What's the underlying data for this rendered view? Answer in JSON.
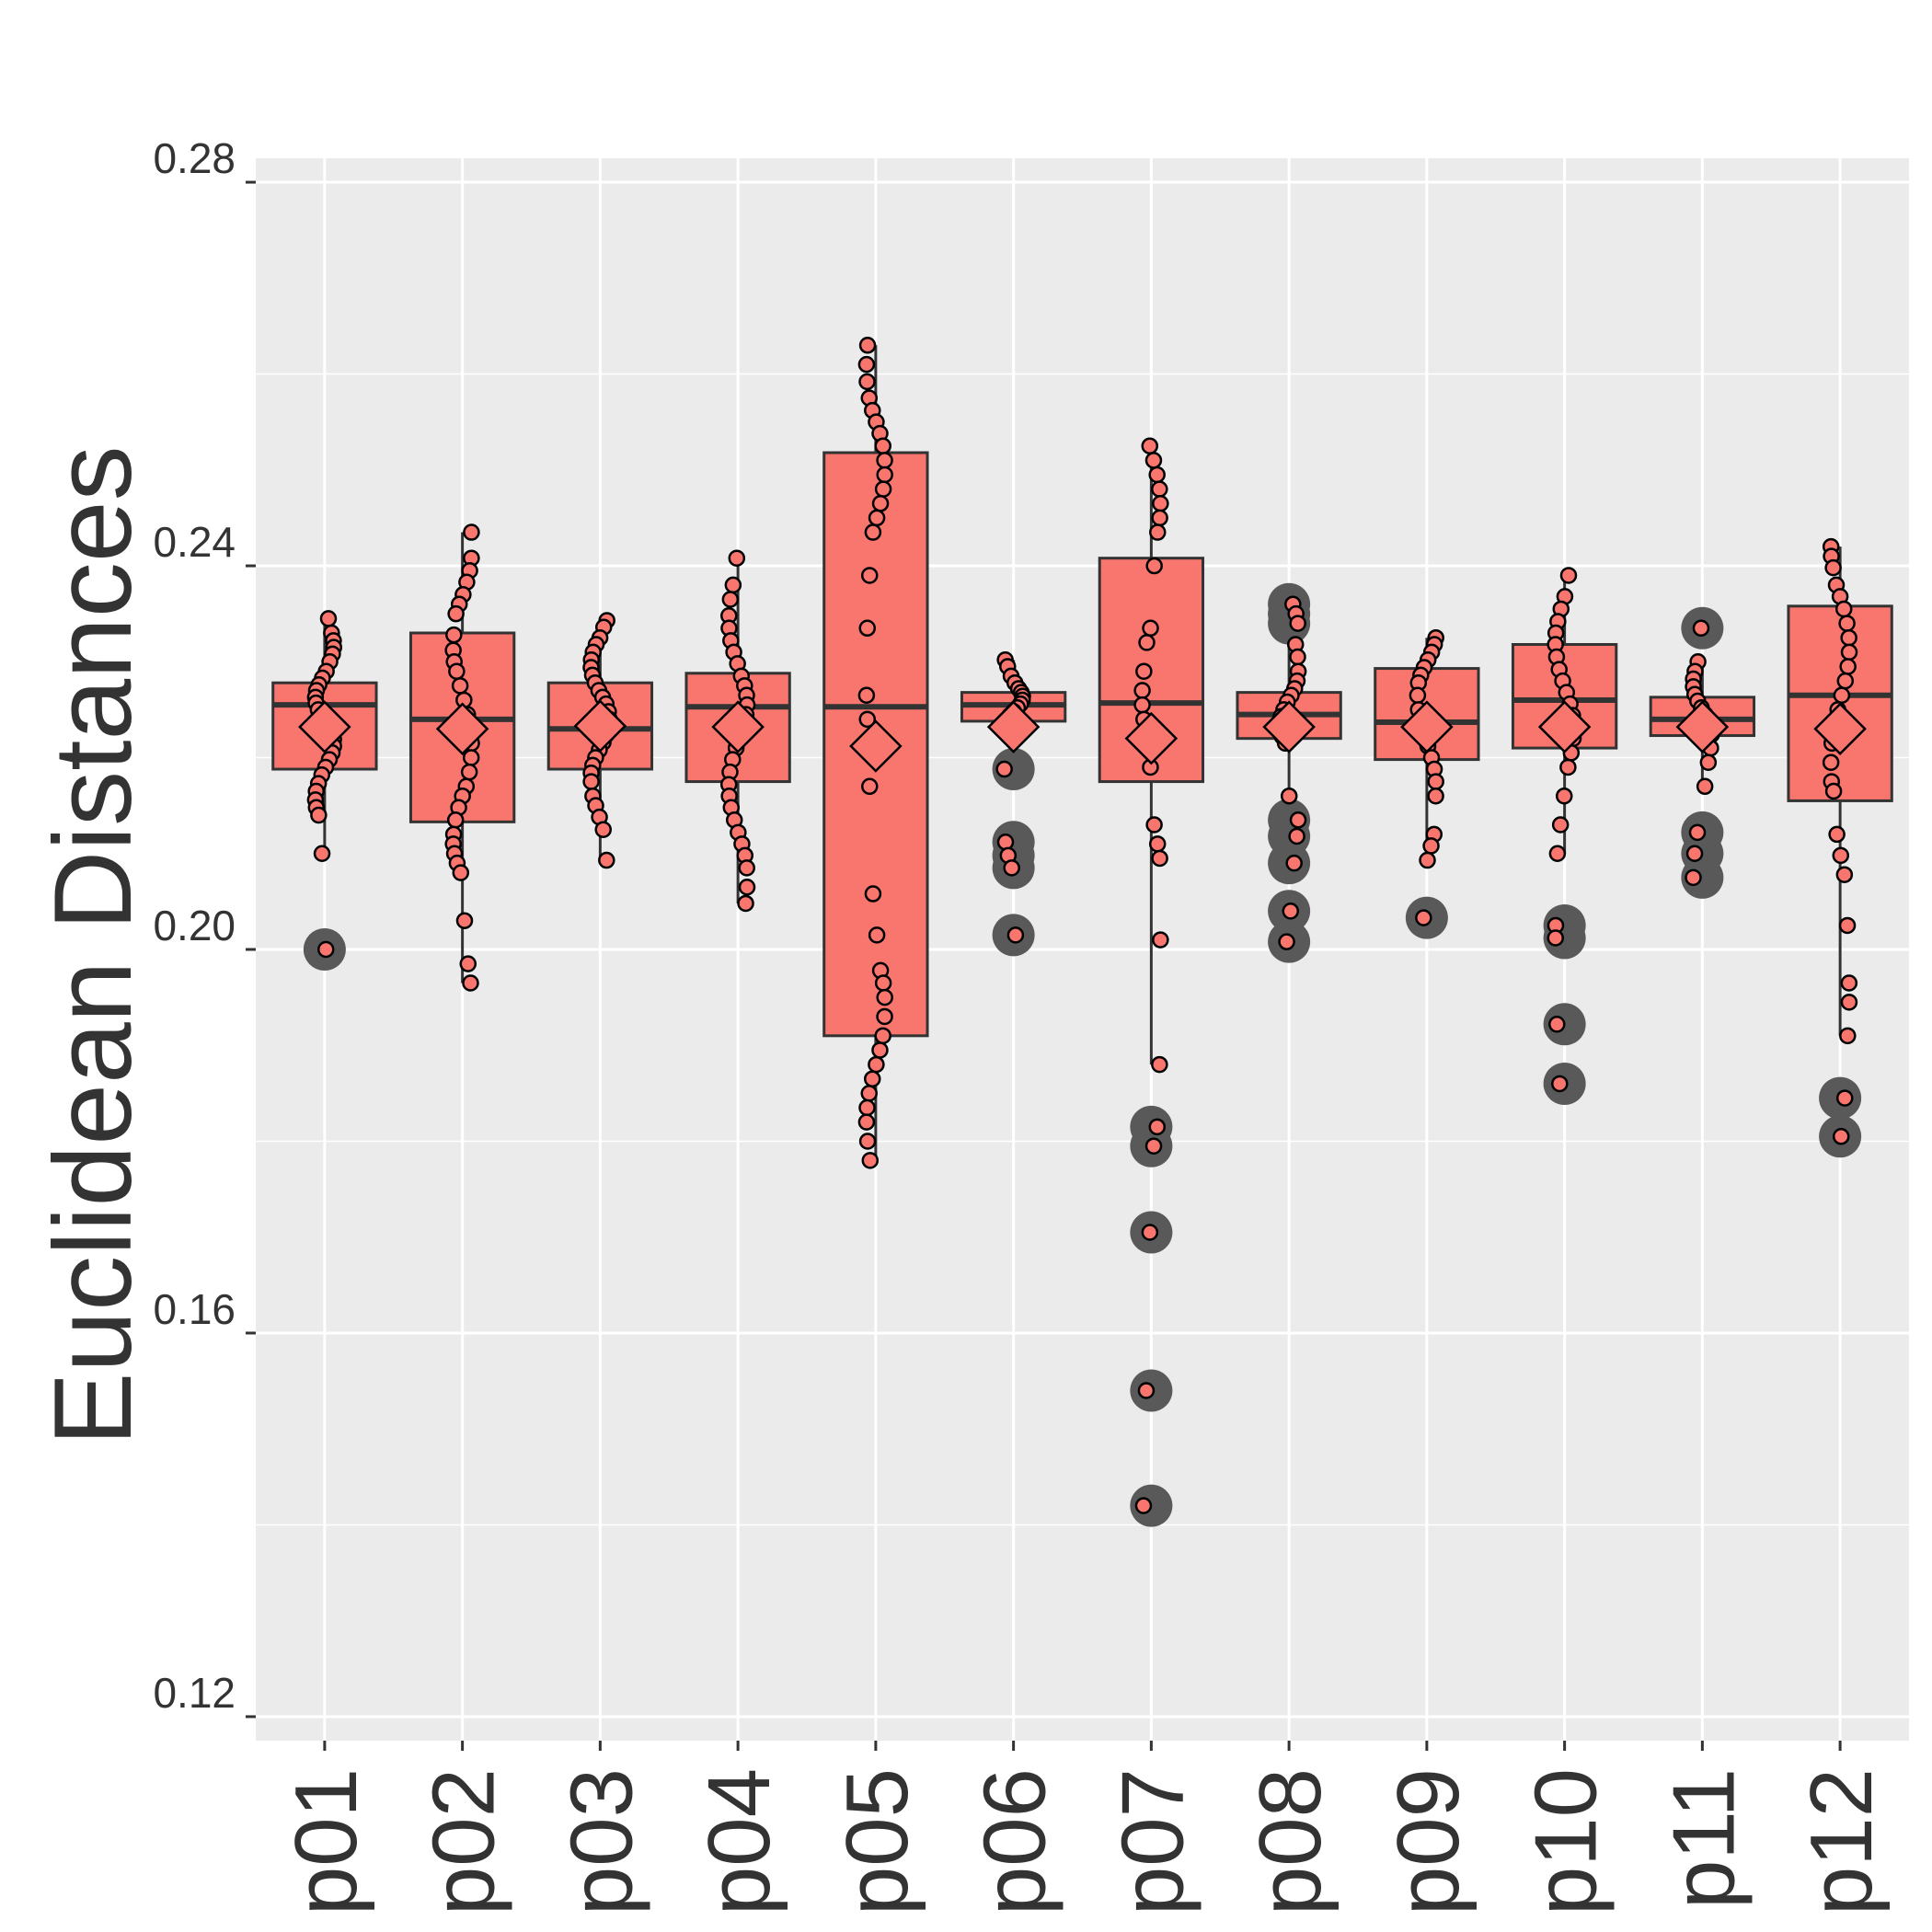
{
  "chart_data": {
    "type": "boxplot",
    "title": "",
    "xlabel": "",
    "ylabel": "Euclidean Distances",
    "ylim": [
      0.1175,
      0.2825
    ],
    "yticks": [
      0.12,
      0.16,
      0.2,
      0.24,
      0.28
    ],
    "ytick_labels": [
      "0.12",
      "0.16",
      "0.20",
      "0.24",
      "0.28"
    ],
    "grid": true,
    "legend": "none",
    "categories": [
      "p01",
      "p02",
      "p03",
      "p04",
      "p05",
      "p06",
      "p07",
      "p08",
      "p09",
      "p10",
      "p11",
      "p12"
    ],
    "colors": {
      "panel": "#EBEBEB",
      "grid": "#FFFFFF",
      "box_fill": "#F8766D",
      "box_line": "#333333",
      "outlier": "#595959",
      "point_fill": "#F8766D",
      "text": "#333333"
    },
    "boxes": [
      {
        "name": "p01",
        "q1": 0.2188,
        "median": 0.2255,
        "q3": 0.2278,
        "lower": 0.21,
        "upper": 0.2345,
        "mean": 0.2232,
        "points": [
          0.2345,
          0.233,
          0.2322,
          0.2315,
          0.2308,
          0.23,
          0.229,
          0.2283,
          0.2276,
          0.227,
          0.2263,
          0.2257,
          0.225,
          0.2244,
          0.2238,
          0.2232,
          0.2226,
          0.2219,
          0.2212,
          0.2205,
          0.2198,
          0.219,
          0.2182,
          0.2173,
          0.2165,
          0.2156,
          0.2148,
          0.214,
          0.21,
          0.2
        ],
        "outliers": [
          0.2
        ]
      },
      {
        "name": "p02",
        "q1": 0.2133,
        "median": 0.224,
        "q3": 0.233,
        "lower": 0.1965,
        "upper": 0.2435,
        "mean": 0.223,
        "points": [
          0.2435,
          0.2408,
          0.2395,
          0.2383,
          0.237,
          0.236,
          0.235,
          0.2328,
          0.2312,
          0.23,
          0.229,
          0.2275,
          0.226,
          0.2245,
          0.223,
          0.2215,
          0.22,
          0.2185,
          0.217,
          0.216,
          0.2148,
          0.2135,
          0.212,
          0.211,
          0.21,
          0.209,
          0.208,
          0.203,
          0.1985,
          0.1965
        ],
        "outliers": []
      },
      {
        "name": "p03",
        "q1": 0.2188,
        "median": 0.223,
        "q3": 0.2278,
        "lower": 0.2093,
        "upper": 0.2343,
        "mean": 0.2233,
        "points": [
          0.2343,
          0.2336,
          0.2325,
          0.2318,
          0.231,
          0.2302,
          0.2294,
          0.2286,
          0.2278,
          0.227,
          0.2263,
          0.2256,
          0.2248,
          0.224,
          0.2232,
          0.2224,
          0.2216,
          0.2208,
          0.22,
          0.2192,
          0.2184,
          0.2175,
          0.216,
          0.215,
          0.2138,
          0.2125,
          0.2093
        ],
        "outliers": []
      },
      {
        "name": "p04",
        "q1": 0.2175,
        "median": 0.2253,
        "q3": 0.2288,
        "lower": 0.2048,
        "upper": 0.2408,
        "mean": 0.2232,
        "points": [
          0.2408,
          0.238,
          0.2365,
          0.2348,
          0.2335,
          0.2322,
          0.231,
          0.2298,
          0.2285,
          0.2275,
          0.2265,
          0.2255,
          0.2245,
          0.2235,
          0.2222,
          0.221,
          0.2198,
          0.2185,
          0.2172,
          0.216,
          0.2148,
          0.2135,
          0.2122,
          0.211,
          0.2098,
          0.2085,
          0.2065,
          0.2048
        ],
        "outliers": []
      },
      {
        "name": "p05",
        "q1": 0.191,
        "median": 0.2253,
        "q3": 0.2518,
        "lower": 0.178,
        "upper": 0.263,
        "mean": 0.2212,
        "points": [
          0.263,
          0.261,
          0.2592,
          0.2575,
          0.2562,
          0.255,
          0.2538,
          0.2525,
          0.251,
          0.2495,
          0.248,
          0.2465,
          0.245,
          0.2435,
          0.239,
          0.2335,
          0.2265,
          0.224,
          0.217,
          0.2058,
          0.2015,
          0.1978,
          0.1965,
          0.195,
          0.193,
          0.191,
          0.1895,
          0.188,
          0.1865,
          0.185,
          0.1835,
          0.182,
          0.18,
          0.178
        ],
        "outliers": []
      },
      {
        "name": "p06",
        "q1": 0.2238,
        "median": 0.2255,
        "q3": 0.2268,
        "lower": 0.2238,
        "upper": 0.2302,
        "mean": 0.2232,
        "points": [
          0.2302,
          0.2295,
          0.2285,
          0.2278,
          0.2272,
          0.2268,
          0.2264,
          0.226,
          0.2256,
          0.2252,
          0.2248,
          0.2244,
          0.224,
          0.2238,
          0.2188,
          0.2112,
          0.2098,
          0.2085,
          0.2015
        ],
        "outliers": [
          0.2188,
          0.2112,
          0.2098,
          0.2085,
          0.2015
        ]
      },
      {
        "name": "p07",
        "q1": 0.2175,
        "median": 0.2257,
        "q3": 0.2408,
        "lower": 0.188,
        "upper": 0.2525,
        "mean": 0.222,
        "points": [
          0.2525,
          0.251,
          0.2495,
          0.248,
          0.2465,
          0.245,
          0.2435,
          0.24,
          0.2335,
          0.232,
          0.229,
          0.227,
          0.2255,
          0.224,
          0.221,
          0.219,
          0.213,
          0.211,
          0.2095,
          0.201,
          0.188,
          0.1815,
          0.1795,
          0.1705,
          0.154,
          0.142
        ],
        "outliers": [
          0.1815,
          0.1795,
          0.1705,
          0.154,
          0.142
        ]
      },
      {
        "name": "p08",
        "q1": 0.222,
        "median": 0.2245,
        "q3": 0.2268,
        "lower": 0.216,
        "upper": 0.2318,
        "mean": 0.2232,
        "points": [
          0.2318,
          0.2305,
          0.229,
          0.228,
          0.2272,
          0.2265,
          0.2258,
          0.225,
          0.2243,
          0.2236,
          0.2229,
          0.2222,
          0.2215,
          0.216,
          0.236,
          0.235,
          0.234,
          0.2135,
          0.2118,
          0.209,
          0.204,
          0.2008
        ],
        "outliers": [
          0.236,
          0.235,
          0.234,
          0.2135,
          0.2118,
          0.209,
          0.204,
          0.2008
        ]
      },
      {
        "name": "p09",
        "q1": 0.2198,
        "median": 0.2237,
        "q3": 0.2293,
        "lower": 0.2093,
        "upper": 0.2325,
        "mean": 0.2232,
        "points": [
          0.2325,
          0.2318,
          0.231,
          0.2302,
          0.2294,
          0.2286,
          0.2278,
          0.2265,
          0.225,
          0.2237,
          0.2225,
          0.2212,
          0.22,
          0.2188,
          0.2175,
          0.216,
          0.212,
          0.2108,
          0.2093,
          0.2033
        ],
        "outliers": [
          0.2033
        ]
      },
      {
        "name": "p10",
        "q1": 0.221,
        "median": 0.226,
        "q3": 0.2318,
        "lower": 0.21,
        "upper": 0.239,
        "mean": 0.2232,
        "points": [
          0.239,
          0.2368,
          0.2355,
          0.2342,
          0.233,
          0.2318,
          0.2305,
          0.2292,
          0.228,
          0.2268,
          0.2256,
          0.2244,
          0.2232,
          0.222,
          0.2205,
          0.219,
          0.216,
          0.213,
          0.21,
          0.2025,
          0.2012,
          0.1922,
          0.186
        ],
        "outliers": [
          0.2025,
          0.2012,
          0.1922,
          0.186
        ]
      },
      {
        "name": "p11",
        "q1": 0.2223,
        "median": 0.224,
        "q3": 0.2263,
        "lower": 0.217,
        "upper": 0.23,
        "mean": 0.2232,
        "points": [
          0.23,
          0.229,
          0.2282,
          0.2274,
          0.2266,
          0.2259,
          0.2252,
          0.2245,
          0.2238,
          0.2231,
          0.2224,
          0.221,
          0.2195,
          0.217,
          0.2335,
          0.2122,
          0.21,
          0.2075
        ],
        "outliers": [
          0.2335,
          0.2122,
          0.21,
          0.2075
        ]
      },
      {
        "name": "p12",
        "q1": 0.2155,
        "median": 0.2265,
        "q3": 0.2358,
        "lower": 0.191,
        "upper": 0.242,
        "mean": 0.223,
        "points": [
          0.242,
          0.241,
          0.2398,
          0.238,
          0.2368,
          0.2355,
          0.234,
          0.2325,
          0.231,
          0.2295,
          0.228,
          0.2265,
          0.225,
          0.2232,
          0.2215,
          0.2195,
          0.2175,
          0.2165,
          0.212,
          0.2098,
          0.2078,
          0.2025,
          0.1965,
          0.1945,
          0.191,
          0.1845,
          0.1805
        ],
        "outliers": [
          0.1845,
          0.1805
        ]
      }
    ]
  }
}
